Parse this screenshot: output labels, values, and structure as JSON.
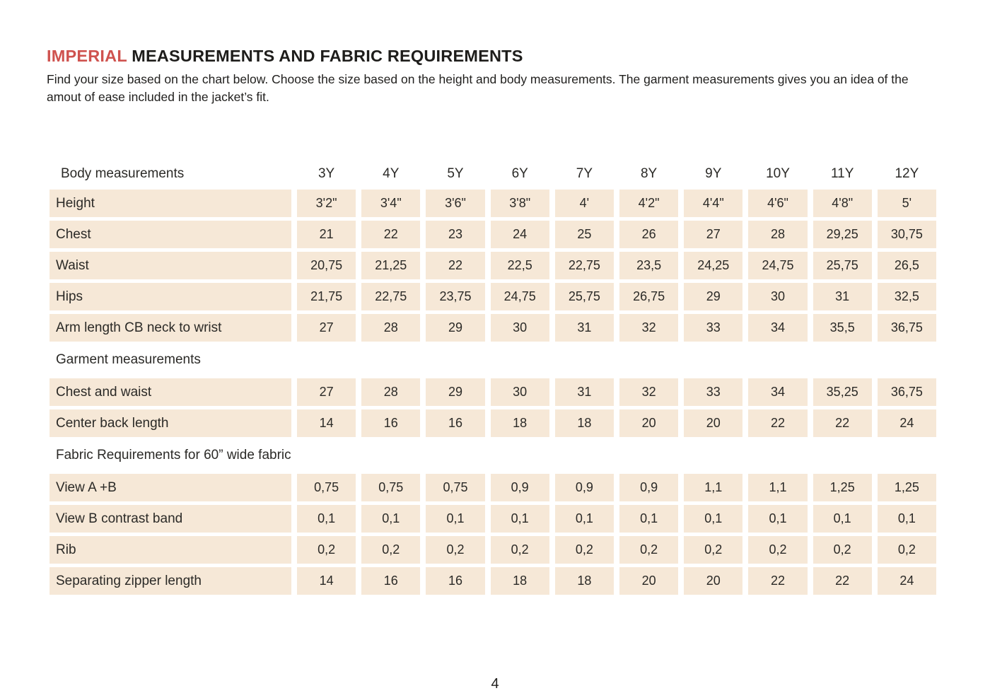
{
  "page": {
    "title_highlight": "IMPERIAL",
    "title_rest": " MEASUREMENTS AND FABRIC REQUIREMENTS",
    "intro": "Find your size based on the chart below. Choose the size based on the height and body measurements. The garment measurements gives you an idea of the amout of ease included in the jacket’s fit.",
    "page_number": "4"
  },
  "colors": {
    "accent": "#cf534f",
    "cell_background": "#f6e8d7",
    "text": "#232220"
  },
  "table": {
    "size_columns": [
      "3Y",
      "4Y",
      "5Y",
      "6Y",
      "7Y",
      "8Y",
      "9Y",
      "10Y",
      "11Y",
      "12Y"
    ],
    "sections": [
      {
        "header": "Body measurements",
        "rows": [
          {
            "label": "Height",
            "values": [
              "3'2\"",
              "3'4\"",
              "3'6\"",
              "3'8\"",
              "4'",
              "4'2\"",
              "4'4\"",
              "4'6\"",
              "4'8\"",
              "5'"
            ]
          },
          {
            "label": "Chest",
            "values": [
              "21",
              "22",
              "23",
              "24",
              "25",
              "26",
              "27",
              "28",
              "29,25",
              "30,75"
            ]
          },
          {
            "label": "Waist",
            "values": [
              "20,75",
              "21,25",
              "22",
              "22,5",
              "22,75",
              "23,5",
              "24,25",
              "24,75",
              "25,75",
              "26,5"
            ]
          },
          {
            "label": "Hips",
            "values": [
              "21,75",
              "22,75",
              "23,75",
              "24,75",
              "25,75",
              "26,75",
              "29",
              "30",
              "31",
              "32,5"
            ]
          },
          {
            "label": "Arm length CB neck to wrist",
            "values": [
              "27",
              "28",
              "29",
              "30",
              "31",
              "32",
              "33",
              "34",
              "35,5",
              "36,75"
            ]
          }
        ]
      },
      {
        "header": "Garment measurements",
        "rows": [
          {
            "label": "Chest and waist",
            "values": [
              "27",
              "28",
              "29",
              "30",
              "31",
              "32",
              "33",
              "34",
              "35,25",
              "36,75"
            ]
          },
          {
            "label": "Center back length",
            "values": [
              "14",
              "16",
              "16",
              "18",
              "18",
              "20",
              "20",
              "22",
              "22",
              "24"
            ]
          }
        ]
      },
      {
        "header": "Fabric Requirements for  60” wide fabric",
        "rows": [
          {
            "label": "View A +B",
            "values": [
              "0,75",
              "0,75",
              "0,75",
              "0,9",
              "0,9",
              "0,9",
              "1,1",
              "1,1",
              "1,25",
              "1,25"
            ]
          },
          {
            "label": "View B contrast band",
            "values": [
              "0,1",
              "0,1",
              "0,1",
              "0,1",
              "0,1",
              "0,1",
              "0,1",
              "0,1",
              "0,1",
              "0,1"
            ]
          },
          {
            "label": "Rib",
            "values": [
              "0,2",
              "0,2",
              "0,2",
              "0,2",
              "0,2",
              "0,2",
              "0,2",
              "0,2",
              "0,2",
              "0,2"
            ]
          },
          {
            "label": "Separating zipper length",
            "values": [
              "14",
              "16",
              "16",
              "18",
              "18",
              "20",
              "20",
              "22",
              "22",
              "24"
            ]
          }
        ]
      }
    ]
  }
}
